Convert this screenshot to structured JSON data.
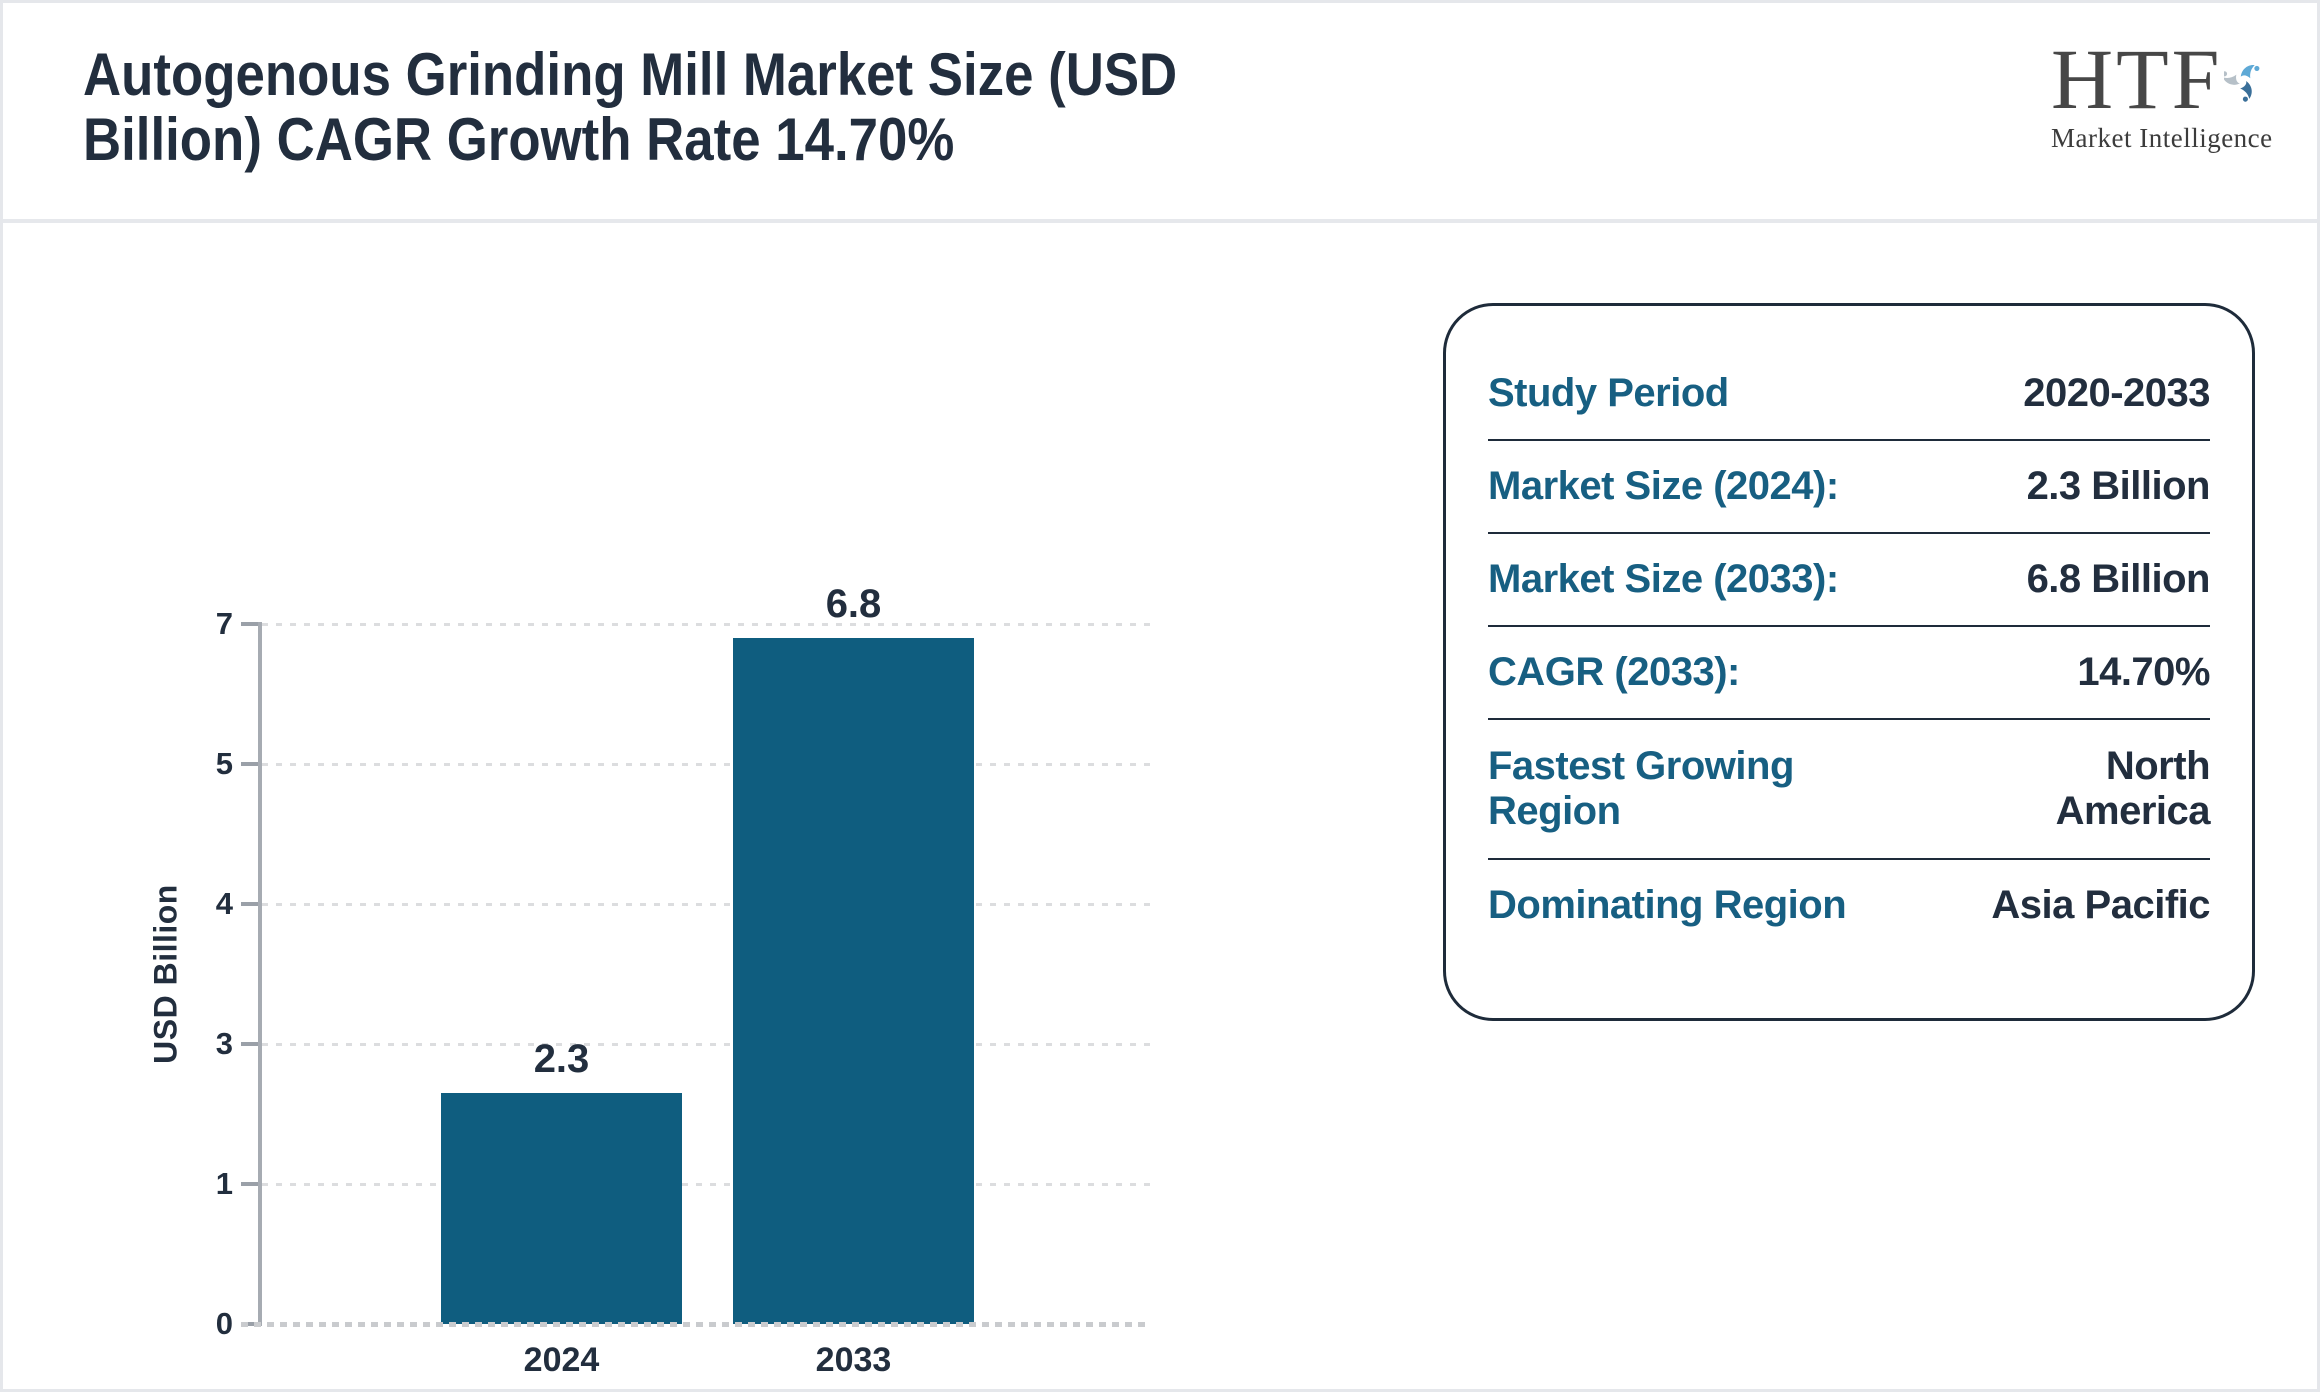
{
  "header": {
    "title_line1": "Autogenous Grinding Mill Market Size (USD",
    "title_line2": "Billion) CAGR Growth Rate 14.70%",
    "logo": {
      "brand": "HTF",
      "tagline": "Market Intelligence"
    }
  },
  "chart_data": {
    "type": "bar",
    "categories": [
      "2024",
      "2033"
    ],
    "values": [
      2.3,
      6.8
    ],
    "bar_labels": [
      "2.3",
      "6.8"
    ],
    "title": "",
    "xlabel": "",
    "ylabel": "USD Billion",
    "y_ticks": [
      "7",
      "5",
      "4",
      "3",
      "1",
      "0"
    ],
    "ylim": [
      0,
      7
    ],
    "grid": "horizontal dotted",
    "legend": "none",
    "bar_color": "#0f5d7f"
  },
  "summary_panel": {
    "rows": [
      {
        "label": "Study Period",
        "value": "2020-2033"
      },
      {
        "label": "Market Size (2024):",
        "value": "2.3 Billion"
      },
      {
        "label": "Market Size (2033):",
        "value": "6.8 Billion"
      },
      {
        "label": "CAGR (2033):",
        "value": "14.70%"
      },
      {
        "label": "Fastest Growing Region",
        "value": "North America"
      },
      {
        "label": "Dominating Region",
        "value": "Asia Pacific"
      }
    ]
  },
  "colors": {
    "bar": "#0f5d7f",
    "label_teal": "#175f82",
    "text_navy": "#222e3e",
    "panel_border": "#1e2b3a",
    "axis_gray": "#a6abb2",
    "gridline_gray": "#dcdddf",
    "logo_light_blue": "#5ea9d6",
    "logo_dark_blue": "#3a6f99",
    "logo_gray": "#b6c0c8"
  }
}
